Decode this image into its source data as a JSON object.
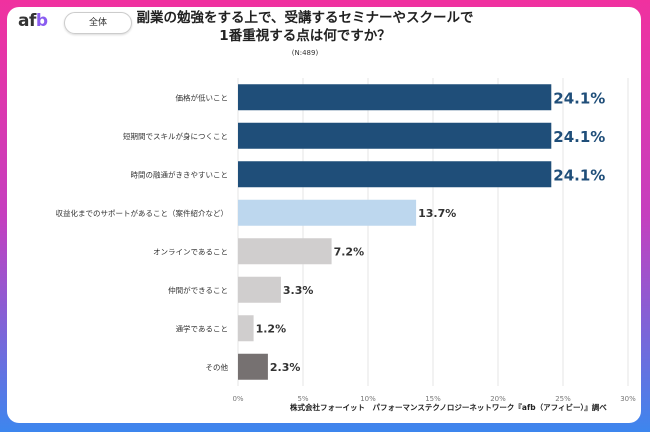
{
  "header": {
    "logo": "afb",
    "badge": "全体",
    "title_line1": "副業の勉強をする上で、受講するセミナーやスクールで",
    "title_line2": "1番重視する点は何ですか？",
    "n": "(N:489)"
  },
  "source": "株式会社フォーイット　パフォーマンステクノロジーネットワーク『afb（アフィビー）』調べ",
  "chart_data": {
    "type": "bar",
    "orientation": "horizontal",
    "categories": [
      "価格が低いこと",
      "短期間でスキルが身につくこと",
      "時間の融通がききやすいこと",
      "収益化までのサポートがあること（案件紹介など）",
      "オンラインであること",
      "仲間ができること",
      "通学であること",
      "その他"
    ],
    "values": [
      24.1,
      24.1,
      24.1,
      13.7,
      7.2,
      3.3,
      1.2,
      2.3
    ],
    "labels": [
      "24.1%",
      "24.1%",
      "24.1%",
      "13.7%",
      "7.2%",
      "3.3%",
      "1.2%",
      "2.3%"
    ],
    "colors": [
      "#1f4e79",
      "#1f4e79",
      "#1f4e79",
      "#bdd7ee",
      "#d0cece",
      "#d0cece",
      "#d0cece",
      "#767171"
    ],
    "xlim": [
      0,
      30
    ],
    "xticks": [
      "0%",
      "5%",
      "10%",
      "15%",
      "20%",
      "25%",
      "30%"
    ],
    "grid": true
  }
}
